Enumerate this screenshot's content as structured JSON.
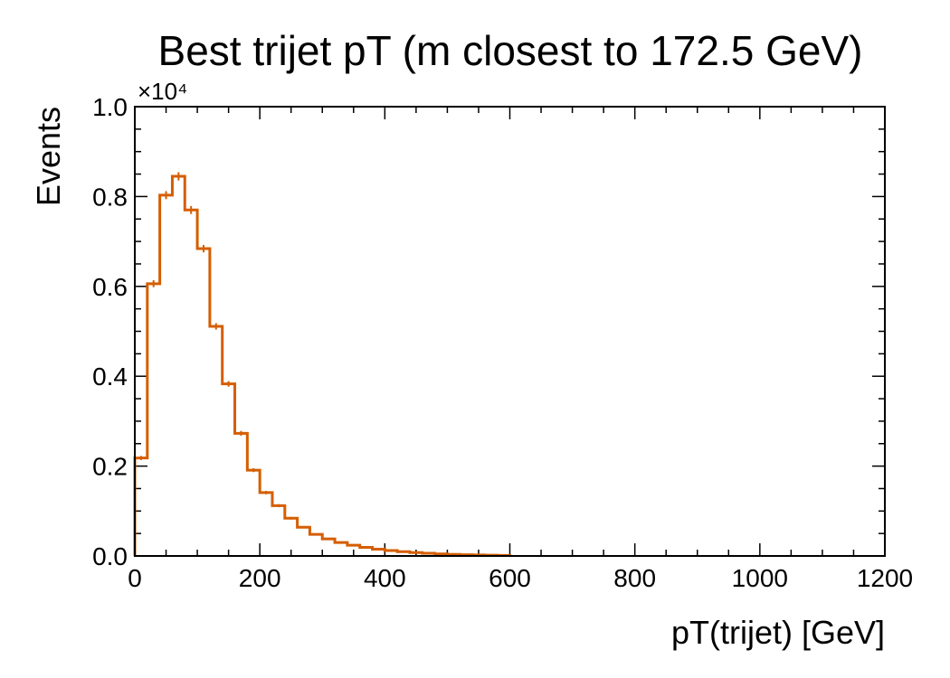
{
  "chart_data": {
    "type": "histogram",
    "title": "Best trijet pT (m closest to 172.5 GeV)",
    "xlabel": "pT(trijet) [GeV]",
    "ylabel": "Events",
    "xlim": [
      0,
      1200
    ],
    "ylim": [
      0,
      10000
    ],
    "y_multiplier_label": "×10⁴",
    "x_ticks": [
      0,
      200,
      400,
      600,
      800,
      1000,
      1200
    ],
    "x_tick_labels": [
      "0",
      "200",
      "400",
      "600",
      "800",
      "1000",
      "1200"
    ],
    "y_ticks": [
      0,
      2000,
      4000,
      6000,
      8000,
      10000
    ],
    "y_tick_labels": [
      "0.0",
      "0.2",
      "0.4",
      "0.6",
      "0.8",
      "1.0"
    ],
    "grid": false,
    "line_color": "#d55e00",
    "bin_width": 20,
    "bin_edges_start": 0,
    "values": [
      2180,
      6060,
      8030,
      8450,
      7700,
      6840,
      5110,
      3830,
      2730,
      1910,
      1410,
      1120,
      840,
      640,
      480,
      380,
      300,
      240,
      190,
      150,
      120,
      95,
      75,
      60,
      45,
      35,
      28,
      22,
      17,
      13
    ]
  }
}
